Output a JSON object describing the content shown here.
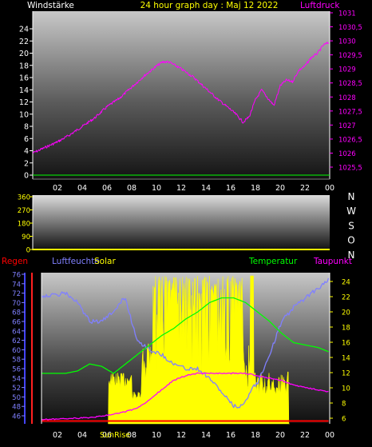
{
  "chart_data": [
    {
      "type": "line",
      "title": "24 hour graph day : Maj 12 2022",
      "left_label": "Windstärke",
      "right_label": "Luftdruck",
      "x_ticks": [
        "02",
        "04",
        "06",
        "08",
        "10",
        "12",
        "14",
        "16",
        "18",
        "20",
        "22",
        "00"
      ],
      "y_left_ticks": [
        "24",
        "22",
        "20",
        "18",
        "16",
        "14",
        "12",
        "10",
        "8",
        "6",
        "4",
        "2",
        "0"
      ],
      "y_right_ticks": [
        "1031",
        "1030,5",
        "1030",
        "1029,5",
        "1029",
        "1028,5",
        "1028",
        "1027,5",
        "1027",
        "1026,5",
        "1026",
        "1025,5"
      ],
      "ylim_left": [
        0,
        25
      ],
      "ylim_right": [
        1025.2,
        1031.1
      ],
      "series": [
        {
          "name": "Luftdruck",
          "axis": "right",
          "color": "#ff00ff",
          "x": [
            0,
            1,
            2,
            3,
            4,
            5,
            6,
            7,
            8,
            9,
            10,
            10.5,
            11,
            12,
            13,
            14,
            15,
            16,
            16.5,
            17,
            17.5,
            18,
            18.5,
            19,
            19.5,
            20,
            20.5,
            21,
            21.5,
            22,
            22.5,
            23,
            23.5,
            24
          ],
          "values": [
            1026,
            1026.2,
            1026.4,
            1026.65,
            1026.95,
            1027.25,
            1027.65,
            1027.95,
            1028.35,
            1028.75,
            1029.1,
            1029.25,
            1029.25,
            1029.0,
            1028.7,
            1028.3,
            1027.9,
            1027.55,
            1027.35,
            1027.1,
            1027.3,
            1027.9,
            1028.25,
            1027.95,
            1027.7,
            1028.4,
            1028.6,
            1028.55,
            1028.95,
            1029.1,
            1029.4,
            1029.55,
            1029.85,
            1029.95
          ]
        },
        {
          "name": "Windstärke",
          "axis": "left",
          "color": "#00ff00",
          "x": [
            0,
            24
          ],
          "values": [
            0,
            0
          ]
        }
      ]
    },
    {
      "type": "line",
      "right_letters": [
        "N",
        "W",
        "S",
        "O",
        "N"
      ],
      "y_ticks": [
        "360",
        "270",
        "180",
        "90",
        "0"
      ],
      "ylim": [
        0,
        360
      ],
      "series": []
    },
    {
      "type": "line",
      "left_labels": [
        {
          "text": "Regen",
          "color": "#ff0000"
        },
        {
          "text": "Luftfeuchte",
          "color": "#8080ff"
        },
        {
          "text": "Solar",
          "color": "#ffff00"
        }
      ],
      "right_labels": [
        {
          "text": "Temperatur",
          "color": "#00ff00"
        },
        {
          "text": "Taupunkt",
          "color": "#ff00ff"
        }
      ],
      "x_ticks": [
        "02",
        "04",
        "06",
        "08",
        "10",
        "12",
        "14",
        "16",
        "18",
        "20",
        "22",
        "00"
      ],
      "sunrise_label": "SunRise",
      "y_left_ticks": [
        "76",
        "74",
        "72",
        "70",
        "68",
        "66",
        "64",
        "62",
        "60",
        "58",
        "56",
        "54",
        "52",
        "50",
        "48",
        "46"
      ],
      "y_right_ticks": [
        "24",
        "22",
        "20",
        "18",
        "16",
        "14",
        "12",
        "10",
        "8",
        "6"
      ],
      "ylim_left": [
        44.8,
        77.0
      ],
      "ylim_right": [
        5.2,
        25.3
      ],
      "series": [
        {
          "name": "Luftfeuchte",
          "axis": "left",
          "color": "#8080ff",
          "x": [
            0,
            1,
            2,
            3,
            4,
            5,
            6,
            6.5,
            7,
            7.5,
            8,
            9,
            10,
            11,
            12,
            13,
            14,
            15,
            16,
            16.5,
            17,
            17.5,
            18,
            19,
            20,
            21,
            22,
            23,
            24
          ],
          "values": [
            71.5,
            71.5,
            72,
            70,
            66,
            66,
            68,
            70,
            71,
            66,
            62,
            60,
            59,
            57,
            56,
            56,
            54,
            51,
            48,
            48,
            49,
            52,
            53,
            59,
            66,
            69,
            71,
            73,
            75
          ]
        },
        {
          "name": "Temperatur",
          "axis": "left",
          "color": "#00ff00",
          "x": [
            0,
            1,
            2,
            3,
            4,
            5,
            6,
            7,
            8,
            9,
            10,
            11,
            12,
            13,
            14,
            15,
            16,
            17,
            18,
            19,
            20,
            21,
            22,
            23,
            24
          ],
          "values": [
            55,
            55,
            55,
            55.5,
            57,
            56.5,
            55,
            57,
            59,
            61,
            63,
            64.5,
            66.5,
            68,
            70,
            71,
            71,
            70,
            68,
            66,
            63.5,
            61.5,
            61,
            60.5,
            59.5
          ]
        },
        {
          "name": "Taupunkt",
          "axis": "left",
          "color": "#ff00ff",
          "x": [
            0,
            1,
            2,
            3,
            4,
            5,
            6,
            7,
            8,
            9,
            10,
            11,
            12,
            13,
            14,
            15,
            16,
            17,
            18,
            19,
            20,
            21,
            22,
            23,
            24
          ],
          "values": [
            45.2,
            45.3,
            45.4,
            45.5,
            45.6,
            45.9,
            46.4,
            46.9,
            47.6,
            49.5,
            51.5,
            53.5,
            54.5,
            55,
            55,
            55,
            55,
            55,
            54.5,
            54,
            53.5,
            52.5,
            52,
            51.5,
            51
          ]
        },
        {
          "name": "Regen",
          "axis": "left",
          "color": "#ff0000",
          "x": [
            0,
            24
          ],
          "values": [
            44.9,
            44.9
          ]
        }
      ]
    }
  ]
}
